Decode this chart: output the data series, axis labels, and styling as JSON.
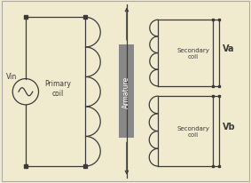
{
  "background_color": "#f0ebcf",
  "line_color": "#3a3a3a",
  "armature_color": "#888888",
  "armature_text_color": "#ffffff",
  "figsize": [
    2.83,
    2.07
  ],
  "dpi": 100,
  "primary_label": "Primary\ncoil",
  "secondary_label_a": "Secondary\ncoil",
  "secondary_label_b": "Secondary\ncoil",
  "vin_label": "Vin",
  "va_label": "Va",
  "vb_label": "Vb",
  "armature_label": "Armature",
  "border_color": "#aaaaaa",
  "xlim": [
    0,
    10
  ],
  "ylim": [
    0,
    7.3
  ]
}
